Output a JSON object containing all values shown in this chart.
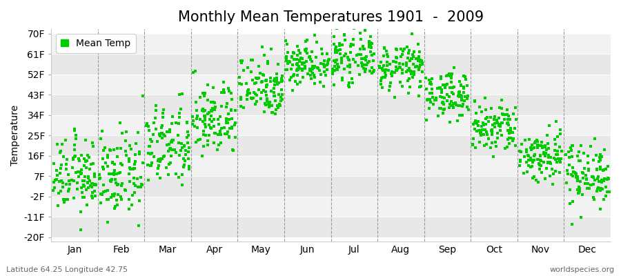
{
  "title": "Monthly Mean Temperatures 1901  -  2009",
  "ylabel": "Temperature",
  "yticks": [
    -20,
    -11,
    -2,
    7,
    16,
    25,
    34,
    43,
    52,
    61,
    70
  ],
  "ytick_labels": [
    "-20F",
    "-11F",
    "-2F",
    "7F",
    "16F",
    "25F",
    "34F",
    "43F",
    "52F",
    "61F",
    "70F"
  ],
  "ylim": [
    -22,
    72
  ],
  "months": [
    "Jan",
    "Feb",
    "Mar",
    "Apr",
    "May",
    "Jun",
    "Jul",
    "Aug",
    "Sep",
    "Oct",
    "Nov",
    "Dec"
  ],
  "month_means_F": [
    7,
    7,
    20,
    32,
    47,
    57,
    59,
    55,
    43,
    28,
    16,
    8
  ],
  "month_stds_F": [
    8,
    9,
    9,
    8,
    7,
    5,
    5,
    5,
    5,
    6,
    6,
    7
  ],
  "n_years": 109,
  "dot_color": "#00CC00",
  "dot_size": 7,
  "legend_label": "Mean Temp",
  "bg_color": "#FFFFFF",
  "band_color_dark": "#E8E8E8",
  "band_color_light": "#F2F2F2",
  "footer_left": "Latitude 64.25 Longitude 42.75",
  "footer_right": "worldspecies.org",
  "title_fontsize": 15,
  "axis_fontsize": 10,
  "tick_fontsize": 10,
  "footer_fontsize": 8
}
